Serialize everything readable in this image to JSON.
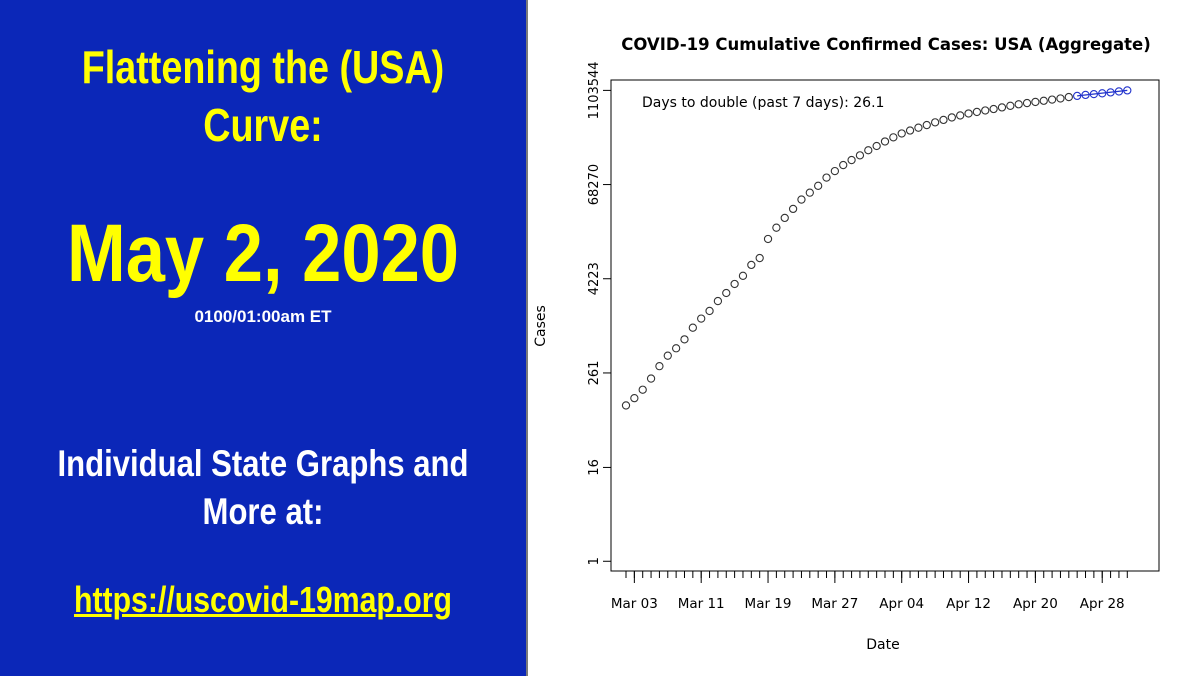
{
  "left": {
    "headline_line1": "Flattening the (USA)",
    "headline_line2": "Curve:",
    "date": "May 2, 2020",
    "time": "0100/01:00am ET",
    "more_line1": "Individual State Graphs and",
    "more_line2": "More at:",
    "link": "https://uscovid-19map.org",
    "colors": {
      "background": "#0b27b8",
      "accent": "#ffff00",
      "text": "#ffffff"
    }
  },
  "chart_data": {
    "type": "scatter",
    "title": "COVID-19 Cumulative Confirmed Cases: USA (Aggregate)",
    "xlabel": "Date",
    "ylabel": "Cases",
    "y_scale": "log",
    "annotation": "Days to double (past 7 days): 26.1",
    "x_ticks": [
      "Mar 03",
      "Mar 11",
      "Mar 19",
      "Mar 27",
      "Apr 04",
      "Apr 12",
      "Apr 20",
      "Apr 28"
    ],
    "y_ticks": [
      1,
      16,
      261,
      4223,
      68270,
      1103544
    ],
    "x_range": [
      "2020-03-02",
      "2020-05-03"
    ],
    "y_range": [
      0.75,
      1500000
    ],
    "grid": false,
    "point_color": "#333333",
    "recent_color": "#2233cc",
    "series": [
      {
        "x": [
          "2020-03-02",
          "2020-03-03",
          "2020-03-04",
          "2020-03-05",
          "2020-03-06",
          "2020-03-07",
          "2020-03-08",
          "2020-03-09",
          "2020-03-10",
          "2020-03-11",
          "2020-03-12",
          "2020-03-13",
          "2020-03-14",
          "2020-03-15",
          "2020-03-16",
          "2020-03-17",
          "2020-03-18",
          "2020-03-19",
          "2020-03-20",
          "2020-03-21",
          "2020-03-22",
          "2020-03-23",
          "2020-03-24",
          "2020-03-25",
          "2020-03-26",
          "2020-03-27",
          "2020-03-28",
          "2020-03-29",
          "2020-03-30",
          "2020-03-31",
          "2020-04-01",
          "2020-04-02",
          "2020-04-03",
          "2020-04-04",
          "2020-04-05",
          "2020-04-06",
          "2020-04-07",
          "2020-04-08",
          "2020-04-09",
          "2020-04-10",
          "2020-04-11",
          "2020-04-12",
          "2020-04-13",
          "2020-04-14",
          "2020-04-15",
          "2020-04-16",
          "2020-04-17",
          "2020-04-18",
          "2020-04-19",
          "2020-04-20",
          "2020-04-21",
          "2020-04-22",
          "2020-04-23",
          "2020-04-24",
          "2020-04-25",
          "2020-04-26",
          "2020-04-27",
          "2020-04-28",
          "2020-04-29",
          "2020-04-30",
          "2020-05-01"
        ],
        "y": [
          100,
          124,
          159,
          221,
          319,
          435,
          541,
          704,
          994,
          1301,
          1630,
          2183,
          2771,
          3617,
          4604,
          6357,
          7786,
          13680,
          19101,
          25493,
          33276,
          43847,
          53740,
          65778,
          83836,
          101657,
          121478,
          140886,
          161807,
          188172,
          213372,
          243762,
          275586,
          308853,
          337072,
          366667,
          396223,
          429052,
          461437,
          496535,
          526396,
          557590,
          584073,
          609516,
          636350,
          667592,
          699706,
          732197,
          758809,
          784326,
          811865,
          840351,
          869170,
          905358,
          938154,
          965785,
          988197,
          1012582,
          1039909,
          1069424,
          1103544
        ]
      }
    ]
  }
}
